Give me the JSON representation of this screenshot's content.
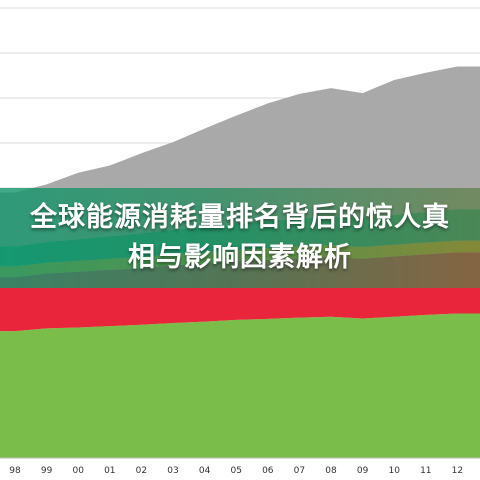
{
  "banner": {
    "title": "全球能源消耗量排名背后的惊人真相与影响因素解析"
  },
  "chart_data": {
    "type": "area",
    "stacked": true,
    "x": [
      "98",
      "99",
      "00",
      "01",
      "02",
      "03",
      "04",
      "05",
      "06",
      "07",
      "08",
      "09",
      "10",
      "11",
      "12"
    ],
    "title": "",
    "xlabel": "",
    "ylabel": "",
    "ylim": [
      0,
      100
    ],
    "grid": true,
    "series": [
      {
        "color": "#7bbd4a",
        "values": [
          28.2,
          28.8,
          29.0,
          29.3,
          29.6,
          30.0,
          30.3,
          30.7,
          30.9,
          31.2,
          31.4,
          31.0,
          31.4,
          31.8,
          32.1
        ]
      },
      {
        "color": "#e8253a",
        "values": [
          12.0,
          12.2,
          12.4,
          12.5,
          12.6,
          12.8,
          12.9,
          13.0,
          13.1,
          13.2,
          13.3,
          13.3,
          13.4,
          13.5,
          13.6
        ]
      },
      {
        "color": "#e6a817",
        "values": [
          2.4,
          2.4,
          2.4,
          2.5,
          2.5,
          2.5,
          2.5,
          2.5,
          2.6,
          2.6,
          2.6,
          2.6,
          2.6,
          2.6,
          2.6
        ]
      },
      {
        "color": "#1aa07e",
        "values": [
          4.4,
          4.6,
          4.8,
          5.0,
          5.2,
          5.4,
          5.6,
          5.8,
          6.0,
          6.2,
          6.4,
          6.5,
          6.6,
          6.8,
          7.0
        ]
      },
      {
        "color": "#a9a9a9",
        "values": [
          12.0,
          12.8,
          14.8,
          15.7,
          17.8,
          19.5,
          21.9,
          24.1,
          26.2,
          27.7,
          28.5,
          27.7,
          30.0,
          30.9,
          31.7
        ]
      }
    ]
  }
}
